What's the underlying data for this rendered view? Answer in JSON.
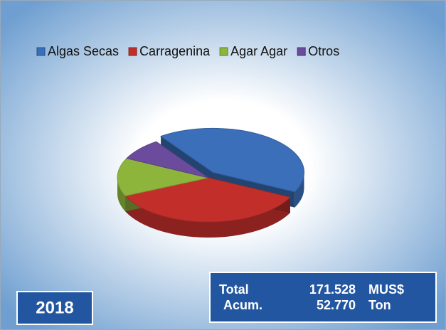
{
  "chart_data": {
    "type": "pie",
    "categories": [
      "Algas Secas",
      "Carragenina",
      "Agar Agar",
      "Otros"
    ],
    "values": [
      42,
      36,
      14,
      8
    ],
    "colors": [
      "#3b6fba",
      "#c22f2b",
      "#8db53c",
      "#6b4b9c"
    ],
    "legend": "top",
    "annotations": {
      "year": "2018",
      "summary": [
        [
          "Total",
          "171.528",
          "MUS$"
        ],
        [
          "Acum.",
          "52.770",
          "Ton"
        ]
      ]
    }
  }
}
